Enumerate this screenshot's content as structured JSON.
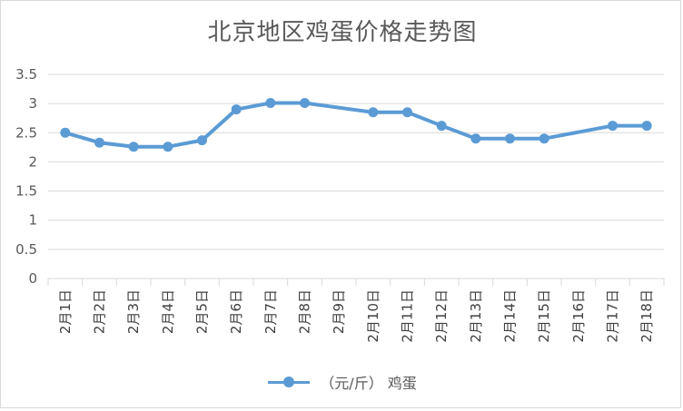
{
  "chart_data": {
    "type": "line",
    "title": "北京地区鸡蛋价格走势图",
    "categories": [
      "2月1日",
      "2月2日",
      "2月3日",
      "2月4日",
      "2月5日",
      "2月6日",
      "2月7日",
      "2月8日",
      "2月9日",
      "2月10日",
      "2月11日",
      "2月12日",
      "2月13日",
      "2月14日",
      "2月15日",
      "2月16日",
      "2月17日",
      "2月18日"
    ],
    "series": [
      {
        "name": "（元/斤） 鸡蛋",
        "color": "#5b9bd5",
        "values": [
          2.5,
          2.33,
          2.26,
          2.26,
          2.37,
          2.9,
          3.01,
          3.01,
          null,
          2.85,
          2.85,
          2.62,
          2.4,
          2.4,
          2.4,
          null,
          2.62,
          2.62
        ]
      }
    ],
    "ylim": [
      0,
      3.5
    ],
    "yticks": [
      "0",
      "0.5",
      "1",
      "1.5",
      "2",
      "2.5",
      "3",
      "3.5"
    ],
    "grid": true,
    "legend_position": "bottom",
    "gridline_color": "#d9d9d9"
  }
}
